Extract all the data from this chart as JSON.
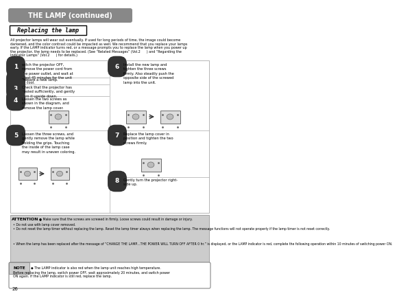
{
  "page_num": "26",
  "title": "THE LAMP (continued)",
  "section_title": "Replacing the lamp",
  "intro_line1": "All projector lamps will wear out eventually. If used for long periods of time, the image could become",
  "intro_line2": "darkened, and the color contrast could be impacted as well. We recommend that you replace your lamps",
  "intro_line3": "early. If the LAMP indicator turns red, or a message prompts you to replace the lamp when you power up",
  "intro_line4": "the projector, the lamp needs to be replaced. (See “Related Messages” (Vol.2      ) and “Regarding the",
  "intro_line5": "Indicator Lamps” (Vol.2      ) for details.)",
  "title_bg": "#888888",
  "title_fg": "#ffffff",
  "page_bg": "#ffffff",
  "attention_bg": "#cccccc",
  "step_num_bg": "#333333",
  "grid_line": "#aaaaaa",
  "attention_title": "ATTENTION",
  "attention_b1": "Make sure that the screws are screwed in firmly. Loose screws could result in damage or injury.",
  "attention_b2": "Do not use with lamp cover removed.",
  "attention_b3": "Do not reset the lamp timer without replacing the lamp. Reset the lamp timer always when replacing the lamp. The message functions will not operate properly if the lamp timer is not reset correctly.",
  "attention_b4": "When the lamp has been replaced after the message of “CHANGE THE LAMP…THE POWER WILL TURN OFF AFTER 0 hr.” is displayed, or the LAMP indicator is red, complete the following operation within 10 minutes of switching power ON.",
  "note_text1": "The LAMP indicator is also red when the lamp unit reaches high temperature.",
  "note_text2": "Before replacing the lamp, switch power OFF, wait approximately 20 minutes, and switch power",
  "note_text3": "ON again. If the LAMP indicator is still red, replace the lamp.",
  "s1": "witch the projector OFF,\nremove the power cord from\nthe power outlet, and wait at\nleast 45 minutes for the unit\nto cool.",
  "s2": "Prepare a new lamp.",
  "s3": "Check that the projector has\ncooled sufficiently, and gently\nturn it upside down.",
  "s4": "Loosen the two screws as\nshown in the diagram, and\nremove the lamp cover.",
  "s5": "Loosen the three screws, and\ngently remove the lamp while\nholding the grips. Touching\nthe inside of the lamp case\nmay result in uneven coloring.",
  "s6": "Install the new lamp and\ntighten the three screws\nfirmly. Also steadily push the\nopposite side of the screwed\nlamp into the unit.",
  "s7": "Replace the lamp cover in\nposition and tighten the two\nscrews firmly.",
  "s8": "Gently turn the projector right-\nside up."
}
